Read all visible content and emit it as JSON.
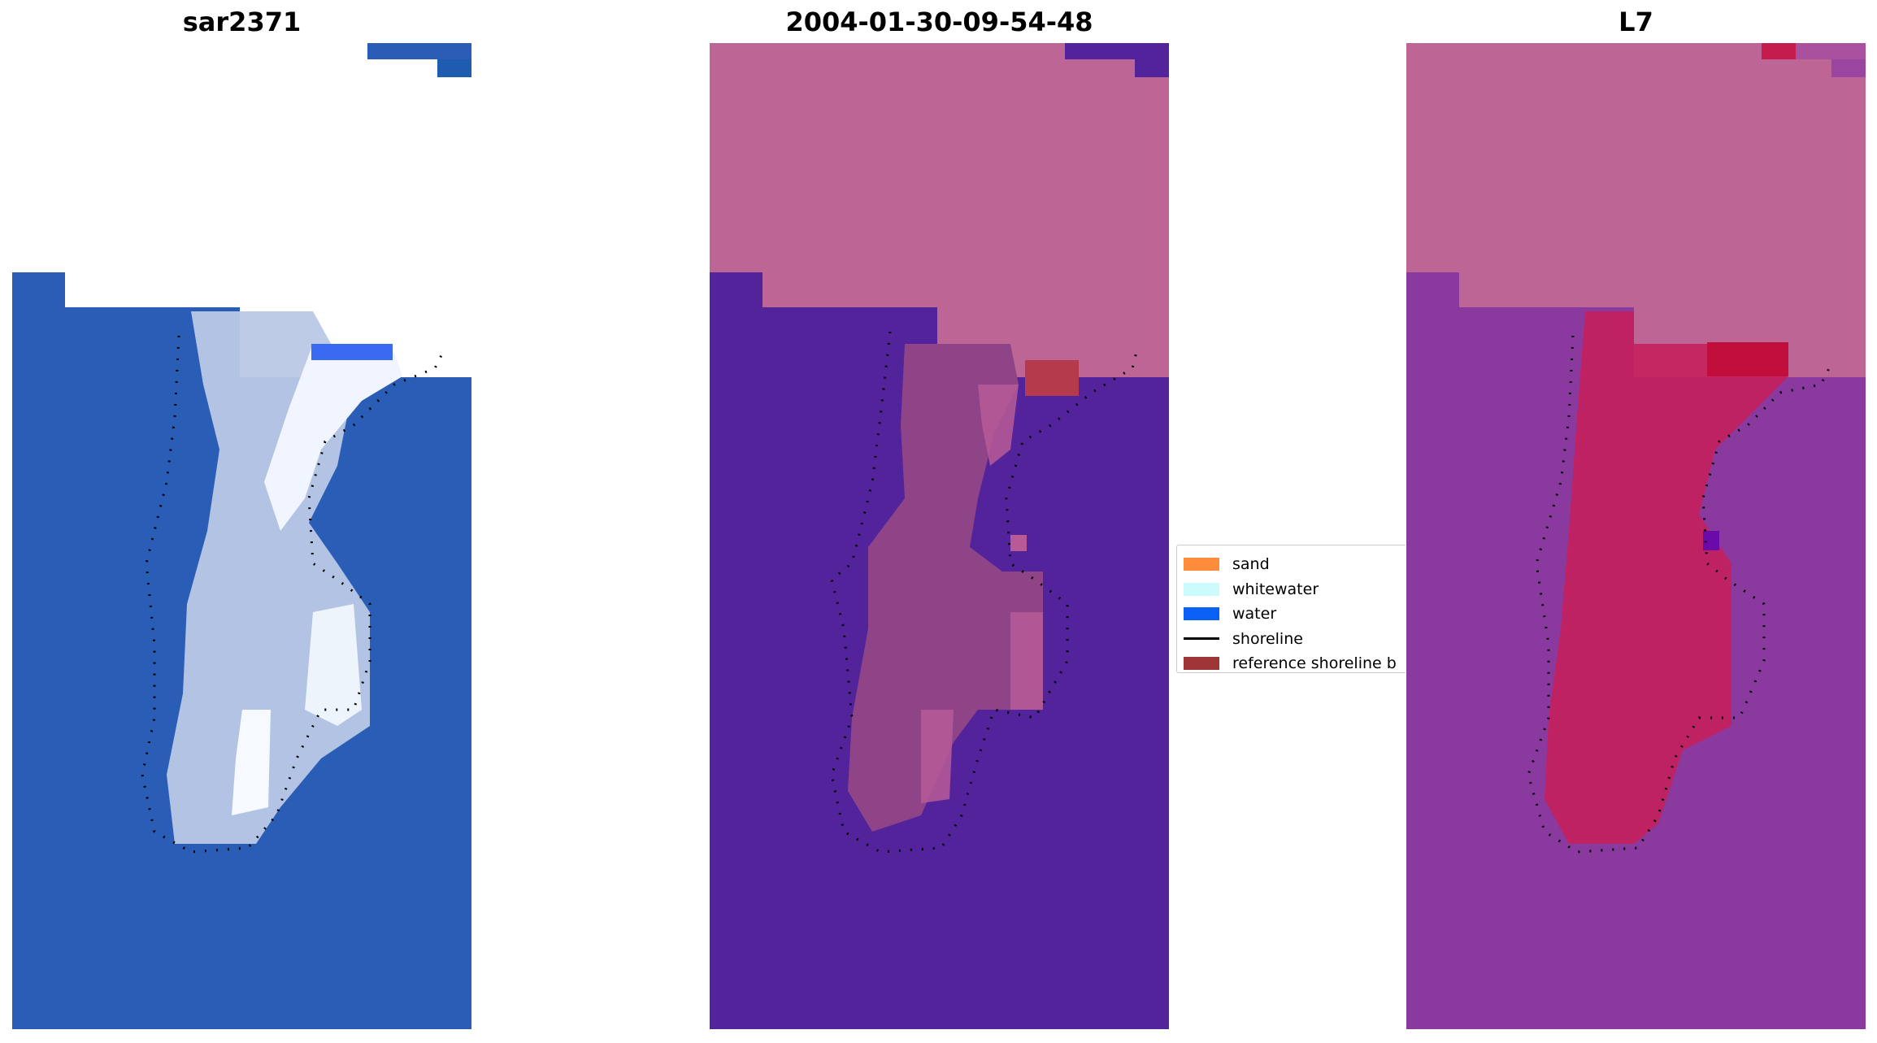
{
  "panels": [
    {
      "title": "sar2371"
    },
    {
      "title": "2004-01-30-09-54-48"
    },
    {
      "title": "L7"
    }
  ],
  "legend": {
    "entries": [
      {
        "label": "sand",
        "color": "#ff8c3a",
        "kind": "patch"
      },
      {
        "label": "whitewater",
        "color": "#ccfbfb",
        "kind": "patch"
      },
      {
        "label": "water",
        "color": "#0a5ff5",
        "kind": "patch"
      },
      {
        "label": "shoreline",
        "color": "#000000",
        "kind": "line"
      },
      {
        "label": "reference shoreline b",
        "color": "#9e3636",
        "kind": "patch"
      }
    ]
  },
  "colors": {
    "rgb_water": "#2a5db5",
    "rgb_sand": "#c8d4ea",
    "classified_background": "#bd6595",
    "classified_water": "#52239a",
    "classified_sand": "#8f4488",
    "classified_reference": "#b53a4b",
    "index_background": "#bd6595",
    "index_water": "#8a3a9e",
    "index_sand": "#c4205c"
  }
}
